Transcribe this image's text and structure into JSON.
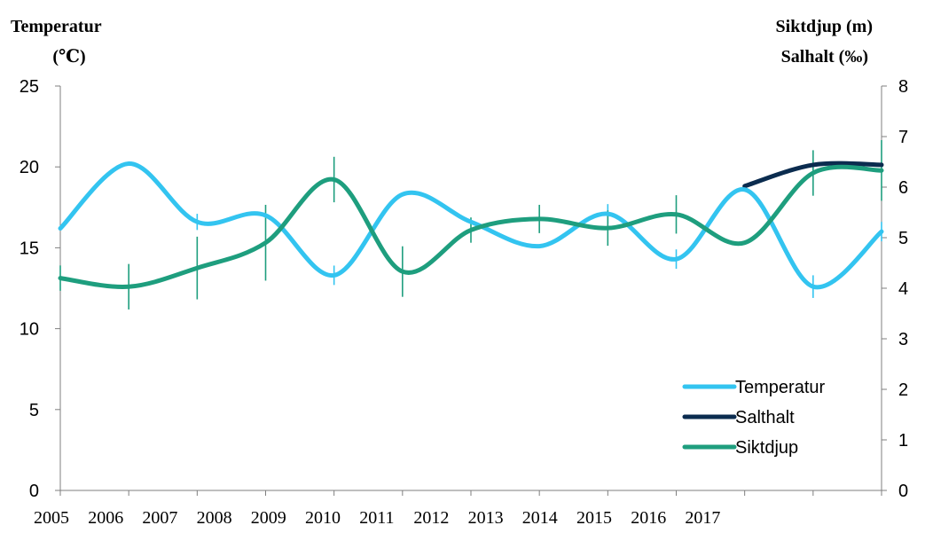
{
  "chart_data": {
    "type": "line",
    "left_axis": {
      "title_line1": "Temperatur",
      "title_line2": "(℃)",
      "ylim": [
        0,
        25
      ],
      "ticks": [
        "0",
        "5",
        "10",
        "15",
        "20",
        "25"
      ]
    },
    "right_axis": {
      "title_line1": "Siktdjup (m)",
      "title_line2": "Salhalt (‰)",
      "ylim": [
        0,
        8
      ],
      "ticks": [
        "0",
        "1",
        "2",
        "3",
        "4",
        "5",
        "6",
        "7",
        "8"
      ]
    },
    "x_tick_labels": [
      "2005",
      "2006",
      "2007",
      "2008",
      "2009",
      "2010",
      "2011",
      "2012",
      "2013",
      "2014",
      "2015",
      "2016",
      "2017"
    ],
    "x_positions": 13,
    "grid": false,
    "legend_placement": "bottom-right",
    "series": [
      {
        "name": "Temperatur",
        "axis": "left",
        "color": "#33c4f0",
        "values": [
          16.2,
          20.2,
          16.6,
          17.0,
          13.3,
          18.3,
          16.6,
          15.1,
          17.1,
          14.3,
          18.6,
          12.6,
          16.0
        ],
        "error_bars": [
          0,
          0,
          0.5,
          0,
          0.6,
          0,
          0,
          0,
          0.6,
          0.6,
          0,
          0.7,
          0.6
        ]
      },
      {
        "name": "Salthalt",
        "axis": "right",
        "color": "#0b2c4f",
        "values": [
          null,
          null,
          null,
          null,
          null,
          null,
          null,
          null,
          null,
          null,
          6.02,
          6.44,
          6.44
        ],
        "error_bars": [
          0,
          0,
          0,
          0,
          0,
          0,
          0,
          0,
          0,
          0,
          0,
          0,
          0
        ]
      },
      {
        "name": "Siktdjup",
        "axis": "right",
        "color": "#1e9e7e",
        "values": [
          4.2,
          4.03,
          4.4,
          4.9,
          6.15,
          4.33,
          5.15,
          5.37,
          5.19,
          5.46,
          4.9,
          6.28,
          6.33
        ],
        "error_bars": [
          0.25,
          0.45,
          0.62,
          0.75,
          0.45,
          0.5,
          0.25,
          0.28,
          0.35,
          0.38,
          0,
          0.45,
          0.6
        ]
      }
    ]
  }
}
